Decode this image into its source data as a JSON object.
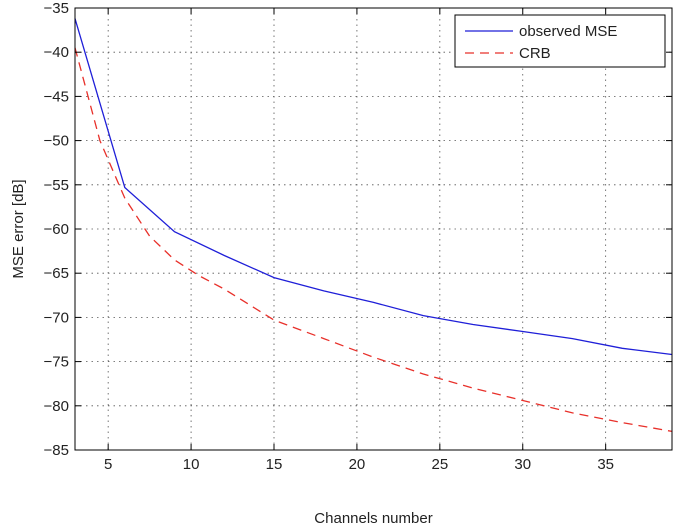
{
  "chart_data": {
    "type": "line",
    "xlabel": "Channels number",
    "ylabel": "MSE error [dB]",
    "xlim": [
      3,
      39
    ],
    "ylim": [
      -85,
      -35
    ],
    "xticks": [
      5,
      10,
      15,
      20,
      25,
      30,
      35
    ],
    "yticks": [
      -35,
      -40,
      -45,
      -50,
      -55,
      -60,
      -65,
      -70,
      -75,
      -80,
      -85
    ],
    "grid": true,
    "legend_position": "top-right",
    "series": [
      {
        "name": "observed MSE",
        "color": "#1f1fd8",
        "style": "solid",
        "x": [
          3,
          6,
          9,
          12,
          15,
          18,
          21,
          24,
          27,
          30,
          33,
          36,
          39
        ],
        "y": [
          -36.2,
          -55.3,
          -60.3,
          -63.0,
          -65.5,
          -67.0,
          -68.3,
          -69.8,
          -70.8,
          -71.6,
          -72.4,
          -73.5,
          -74.2
        ]
      },
      {
        "name": "CRB",
        "color": "#e8302a",
        "style": "dashed",
        "x": [
          3,
          4.5,
          6,
          7.5,
          9,
          10.5,
          12,
          15,
          18,
          21,
          24,
          27,
          30,
          33,
          36,
          39
        ],
        "y": [
          -39.5,
          -50.0,
          -56.5,
          -60.8,
          -63.5,
          -65.3,
          -66.8,
          -70.3,
          -72.4,
          -74.5,
          -76.4,
          -78.0,
          -79.4,
          -80.8,
          -81.9,
          -82.9
        ]
      }
    ]
  }
}
